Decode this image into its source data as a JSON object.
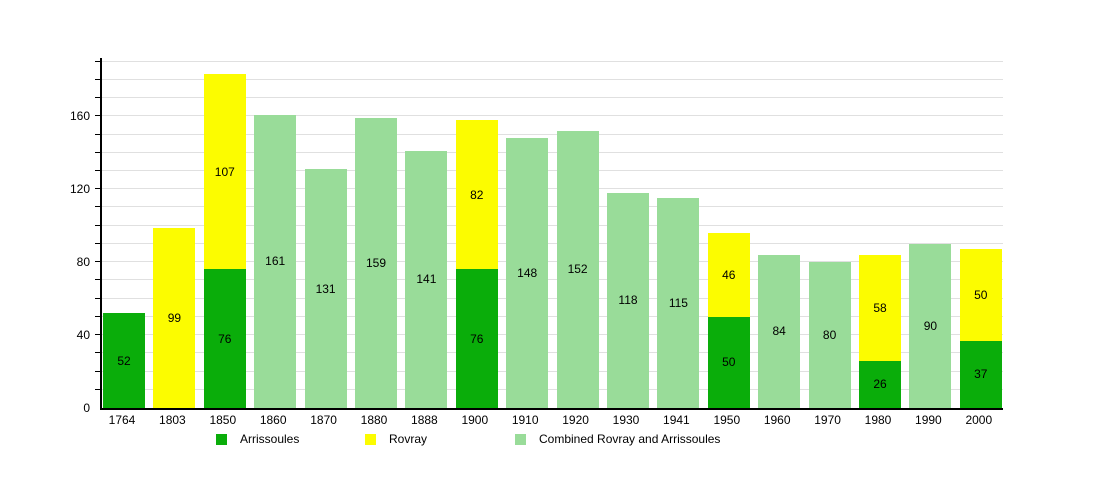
{
  "chart_data": {
    "type": "bar",
    "stacked": true,
    "title": "",
    "xlabel": "",
    "ylabel": "",
    "categories": [
      "1764",
      "1803",
      "1850",
      "1860",
      "1870",
      "1880",
      "1888",
      "1900",
      "1910",
      "1920",
      "1930",
      "1941",
      "1950",
      "1960",
      "1970",
      "1980",
      "1990",
      "2000"
    ],
    "series": [
      {
        "name": "Arrissoules",
        "color": "#0aad0a",
        "values": [
          52,
          null,
          76,
          null,
          null,
          null,
          null,
          76,
          null,
          null,
          null,
          null,
          50,
          null,
          null,
          26,
          null,
          37
        ]
      },
      {
        "name": "Rovray",
        "color": "#fcfc00",
        "values": [
          null,
          99,
          107,
          null,
          null,
          null,
          null,
          82,
          null,
          null,
          null,
          null,
          46,
          null,
          null,
          58,
          null,
          50
        ]
      },
      {
        "name": "Combined Rovray and Arrissoules",
        "color": "#99dc99",
        "values": [
          null,
          null,
          null,
          161,
          131,
          159,
          141,
          null,
          148,
          152,
          118,
          115,
          null,
          84,
          80,
          null,
          90,
          null
        ]
      }
    ],
    "ylim": [
      0,
      192
    ],
    "yticks": [
      0,
      40,
      80,
      120,
      160
    ],
    "grid_interval": 10,
    "grid": true,
    "legend_position": "bottom"
  },
  "colors": {
    "background": "#ffffff",
    "axis": "#000000",
    "gridline": "#e0e0e0",
    "text": "#000000"
  }
}
